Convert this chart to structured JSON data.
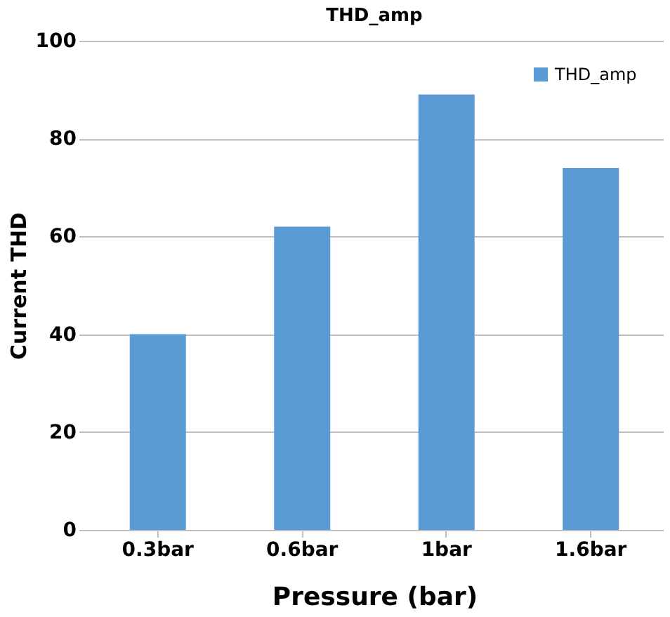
{
  "chart_data": {
    "type": "bar",
    "title": "THD_amp",
    "xlabel": "Pressure (bar)",
    "ylabel": "Current THD",
    "categories": [
      "0.3bar",
      "0.6bar",
      "1bar",
      "1.6bar"
    ],
    "series": [
      {
        "name": "THD_amp",
        "color": "#5b9bd5",
        "values": [
          40,
          62,
          89,
          74
        ]
      }
    ],
    "ylim": [
      0,
      100
    ],
    "yticks": [
      0,
      20,
      40,
      60,
      80,
      100
    ],
    "grid": "y",
    "legend": "top right"
  }
}
